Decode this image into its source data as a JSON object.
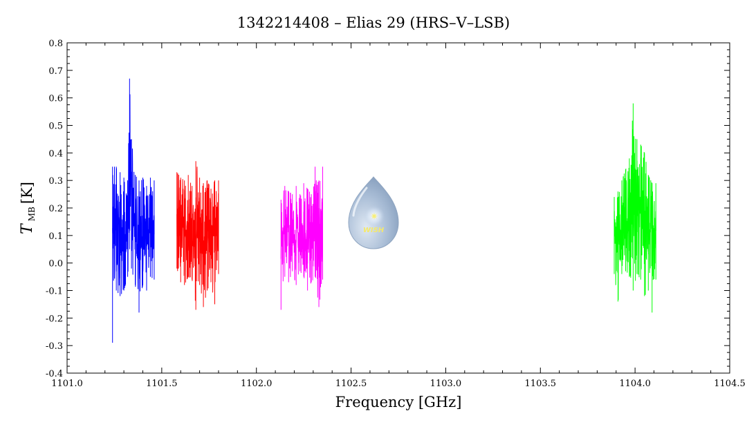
{
  "chart_data": {
    "type": "line",
    "title": "1342214408 – Elias 29 (HRS–V–LSB)",
    "xlabel": "Frequency [GHz]",
    "ylabel": {
      "symbol": "T",
      "subscript": "MB",
      "unit": "[K]"
    },
    "xlim": [
      1101.0,
      1104.5
    ],
    "ylim": [
      -0.4,
      0.8
    ],
    "x_ticks": [
      "1101.0",
      "1101.5",
      "1102.0",
      "1102.5",
      "1103.0",
      "1103.5",
      "1104.0",
      "1104.5"
    ],
    "y_ticks": [
      "-0.4",
      "-0.3",
      "-0.2",
      "-0.1",
      "0.0",
      "0.1",
      "0.2",
      "0.3",
      "0.4",
      "0.5",
      "0.6",
      "0.7",
      "0.8"
    ],
    "grid": false,
    "logo": {
      "text": "WISH"
    },
    "series": [
      {
        "color": "#0000ff",
        "x": [
          1101.24,
          1101.26,
          1101.28,
          1101.3,
          1101.32,
          1101.33,
          1101.34,
          1101.36,
          1101.38,
          1101.4,
          1101.42,
          1101.44,
          1101.46
        ],
        "y": [
          0.1,
          0.12,
          0.08,
          0.1,
          0.14,
          0.4,
          0.22,
          0.1,
          0.14,
          0.08,
          0.12,
          0.14,
          0.1
        ],
        "min": [
          -0.29,
          -0.1,
          -0.12,
          -0.1,
          -0.05,
          0.05,
          -0.02,
          -0.08,
          -0.18,
          -0.08,
          -0.1,
          -0.05,
          -0.06
        ],
        "max": [
          0.35,
          0.35,
          0.33,
          0.31,
          0.3,
          0.67,
          0.45,
          0.32,
          0.3,
          0.31,
          0.28,
          0.31,
          0.3
        ]
      },
      {
        "color": "#ff0000",
        "x": [
          1101.58,
          1101.6,
          1101.62,
          1101.64,
          1101.66,
          1101.68,
          1101.7,
          1101.72,
          1101.74,
          1101.76,
          1101.78,
          1101.8
        ],
        "y": [
          0.12,
          0.1,
          0.11,
          0.12,
          0.1,
          0.11,
          0.13,
          0.1,
          0.11,
          0.1,
          0.12,
          0.11
        ],
        "min": [
          -0.02,
          -0.07,
          -0.08,
          -0.05,
          -0.06,
          -0.17,
          -0.08,
          -0.16,
          -0.1,
          -0.07,
          -0.15,
          -0.04
        ],
        "max": [
          0.33,
          0.31,
          0.3,
          0.32,
          0.28,
          0.37,
          0.31,
          0.29,
          0.3,
          0.27,
          0.3,
          0.3
        ]
      },
      {
        "color": "#ff00ff",
        "x": [
          1102.13,
          1102.15,
          1102.17,
          1102.19,
          1102.21,
          1102.23,
          1102.25,
          1102.27,
          1102.29,
          1102.31,
          1102.33,
          1102.35
        ],
        "y": [
          0.08,
          0.1,
          0.12,
          0.09,
          0.1,
          0.12,
          0.08,
          0.11,
          0.1,
          0.12,
          0.09,
          0.1
        ],
        "min": [
          -0.17,
          -0.05,
          -0.07,
          -0.03,
          -0.08,
          -0.03,
          -0.05,
          -0.1,
          -0.07,
          -0.05,
          -0.16,
          -0.06
        ],
        "max": [
          0.23,
          0.28,
          0.26,
          0.25,
          0.28,
          0.25,
          0.29,
          0.27,
          0.25,
          0.35,
          0.3,
          0.35
        ]
      },
      {
        "color": "#00ff00",
        "x": [
          1103.89,
          1103.91,
          1103.93,
          1103.95,
          1103.97,
          1103.99,
          1104.01,
          1104.03,
          1104.05,
          1104.07,
          1104.09,
          1104.11
        ],
        "y": [
          0.1,
          0.12,
          0.14,
          0.15,
          0.18,
          0.22,
          0.25,
          0.2,
          0.16,
          0.12,
          0.11,
          0.1
        ],
        "min": [
          -0.04,
          -0.14,
          -0.04,
          -0.03,
          -0.05,
          -0.1,
          -0.04,
          -0.06,
          -0.12,
          -0.1,
          -0.18,
          -0.06
        ],
        "max": [
          0.24,
          0.26,
          0.3,
          0.34,
          0.38,
          0.58,
          0.45,
          0.43,
          0.4,
          0.32,
          0.29,
          0.29
        ]
      }
    ]
  }
}
